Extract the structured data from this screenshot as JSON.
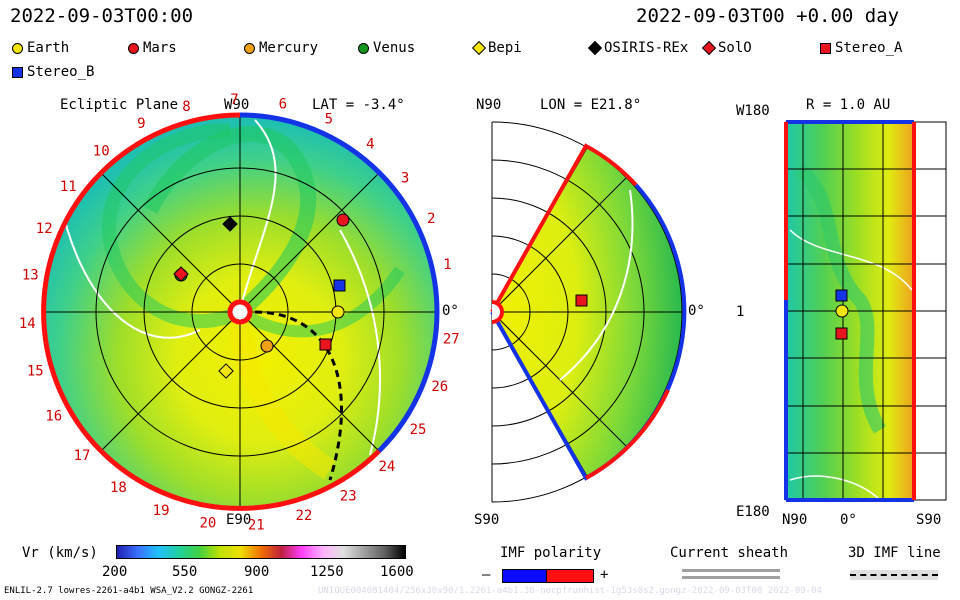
{
  "header": {
    "left": "2022-09-03T00:00",
    "right": "2022-09-03T00 +0.00 day"
  },
  "legend": [
    {
      "label": "Earth",
      "shape": "circle",
      "color": "#f5e60a"
    },
    {
      "label": "Mars",
      "shape": "circle",
      "color": "#e8141e"
    },
    {
      "label": "Mercury",
      "shape": "circle",
      "color": "#f0a014"
    },
    {
      "label": "Venus",
      "shape": "circle",
      "color": "#14961e"
    },
    {
      "label": "Bepi",
      "shape": "diamond",
      "color": "#f5e60a"
    },
    {
      "label": "OSIRIS-REx",
      "shape": "diamond",
      "color": "#000000"
    },
    {
      "label": "SolO",
      "shape": "diamond",
      "color": "#e8141e"
    },
    {
      "label": "Stereo_A",
      "shape": "square",
      "color": "#e8141e"
    },
    {
      "label": "Stereo_B",
      "shape": "square",
      "color": "#1432e6"
    }
  ],
  "panel1": {
    "title": "Ecliptic Plane",
    "lat": "LAT = -3.4°",
    "top": "W90",
    "bottom": "E90",
    "right": "0°",
    "ticks": [
      "1",
      "2",
      "3",
      "4",
      "5",
      "6",
      "7",
      "8",
      "9",
      "10",
      "11",
      "12",
      "13",
      "14",
      "15",
      "16",
      "17",
      "18",
      "19",
      "20",
      "21",
      "22",
      "23",
      "24",
      "25",
      "26",
      "27"
    ]
  },
  "panel2": {
    "lon": "LON = E21.8°",
    "top": "N90",
    "bottom": "S90",
    "right": "0°"
  },
  "panel3": {
    "r": "R = 1.0 AU",
    "top": "W180",
    "bottom": "E180",
    "left": "1",
    "xleft": "N90",
    "xmid": "0°",
    "xright": "S90"
  },
  "colorbar": {
    "label": "Vr (km/s)",
    "ticks": [
      "200",
      "550",
      "900",
      "1250",
      "1600"
    ],
    "range": [
      200,
      1600
    ]
  },
  "imf": {
    "label": "IMF polarity",
    "minus": "–",
    "plus": "+",
    "neg_color": "#0a0aff",
    "pos_color": "#ff1010"
  },
  "sheath": {
    "label": "Current sheath"
  },
  "imf3d": {
    "label": "3D IMF line"
  },
  "footer": {
    "left": "ENLIL-2.7 lowres-2261-a4b1 WSA_V2.2 GONGZ-2261",
    "right": "UNIQUE004081404/256x30x90/1.2261-a4b1.36-nocpfrunhist-1g53s0s2.gongz-2022-09-03T00   2022-09-04"
  }
}
